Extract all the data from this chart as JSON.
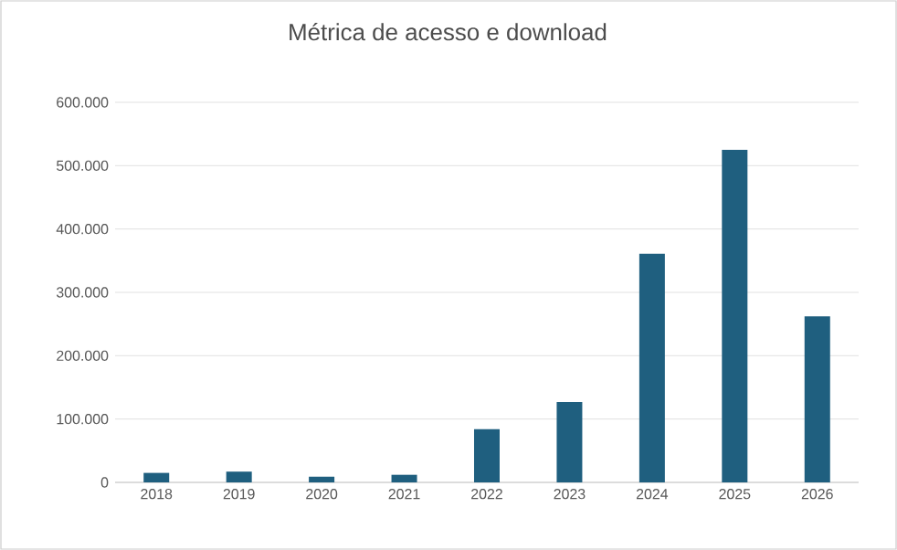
{
  "chart_data": {
    "type": "bar",
    "title": "Métrica de acesso e download",
    "categories": [
      "2018",
      "2019",
      "2020",
      "2021",
      "2022",
      "2023",
      "2024",
      "2025",
      "2026"
    ],
    "values": [
      15000,
      17000,
      9000,
      12000,
      84000,
      127000,
      361000,
      525000,
      262000
    ],
    "color": "#1f5f7f",
    "ylim": [
      0,
      600000
    ],
    "yticks": [
      {
        "value": 0,
        "label": "0"
      },
      {
        "value": 100000,
        "label": "100.000"
      },
      {
        "value": 200000,
        "label": "200.000"
      },
      {
        "value": 300000,
        "label": "300.000"
      },
      {
        "value": 400000,
        "label": "400.000"
      },
      {
        "value": 500000,
        "label": "500.000"
      },
      {
        "value": 600000,
        "label": "600.000"
      }
    ],
    "grid": "y"
  }
}
